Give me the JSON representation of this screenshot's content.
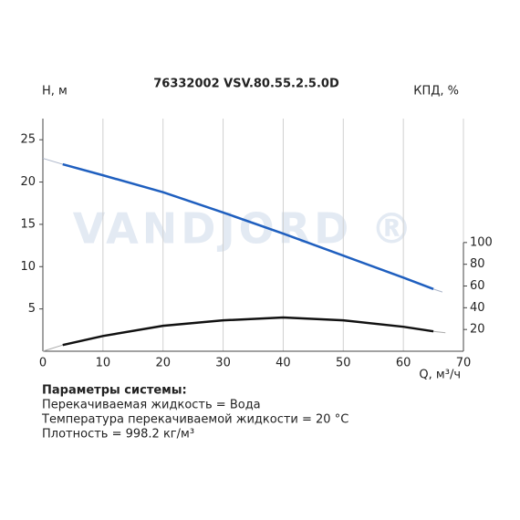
{
  "chart_data": {
    "type": "line",
    "title": "76332002 VSV.80.55.2.5.0D",
    "watermark": "VANDJORD ®",
    "ylabel": "H, м",
    "y2label": "КПД, %",
    "xlabel": "Q, м³/ч",
    "xlim": [
      0,
      70
    ],
    "xticks": [
      0,
      10,
      20,
      30,
      40,
      50,
      60,
      70
    ],
    "ylim": [
      0,
      27.5
    ],
    "yticks": [
      5,
      10,
      15,
      20,
      25
    ],
    "y2lim": [
      0,
      214
    ],
    "y2ticks": [
      20,
      40,
      60,
      80,
      100
    ],
    "grid": "x",
    "series": [
      {
        "color": "#aab4c8",
        "width": 1,
        "x": [
          0,
          3.3,
          30,
          65,
          66.5
        ],
        "values": [
          22.8,
          22.1,
          null,
          7.35,
          7.0
        ]
      },
      {
        "color": "#1f5fbf",
        "width": 2.5,
        "x": [
          3.3,
          10,
          20,
          30,
          40,
          50,
          60,
          65
        ],
        "values": [
          22.1,
          20.8,
          18.8,
          16.4,
          13.9,
          11.3,
          8.7,
          7.35
        ]
      },
      {
        "color": "#aaaaaa",
        "width": 1,
        "axis": "y2",
        "x": [
          0,
          3.3,
          30,
          65,
          67
        ],
        "values": [
          0,
          5.7,
          null,
          18.3,
          17
        ]
      },
      {
        "color": "#111111",
        "width": 2.5,
        "axis": "y2",
        "x": [
          3.3,
          10,
          20,
          30,
          40,
          50,
          60,
          65
        ],
        "values": [
          5.7,
          14,
          23.4,
          28.4,
          31,
          28.4,
          22.5,
          18.3
        ]
      }
    ]
  },
  "footer": {
    "heading": "Параметры системы:",
    "lines": [
      "Перекачиваемая жидкость = Вода",
      "Температура перекачиваемой жидкости = 20 °C",
      "Плотность = 998.2 кг/м³"
    ]
  }
}
